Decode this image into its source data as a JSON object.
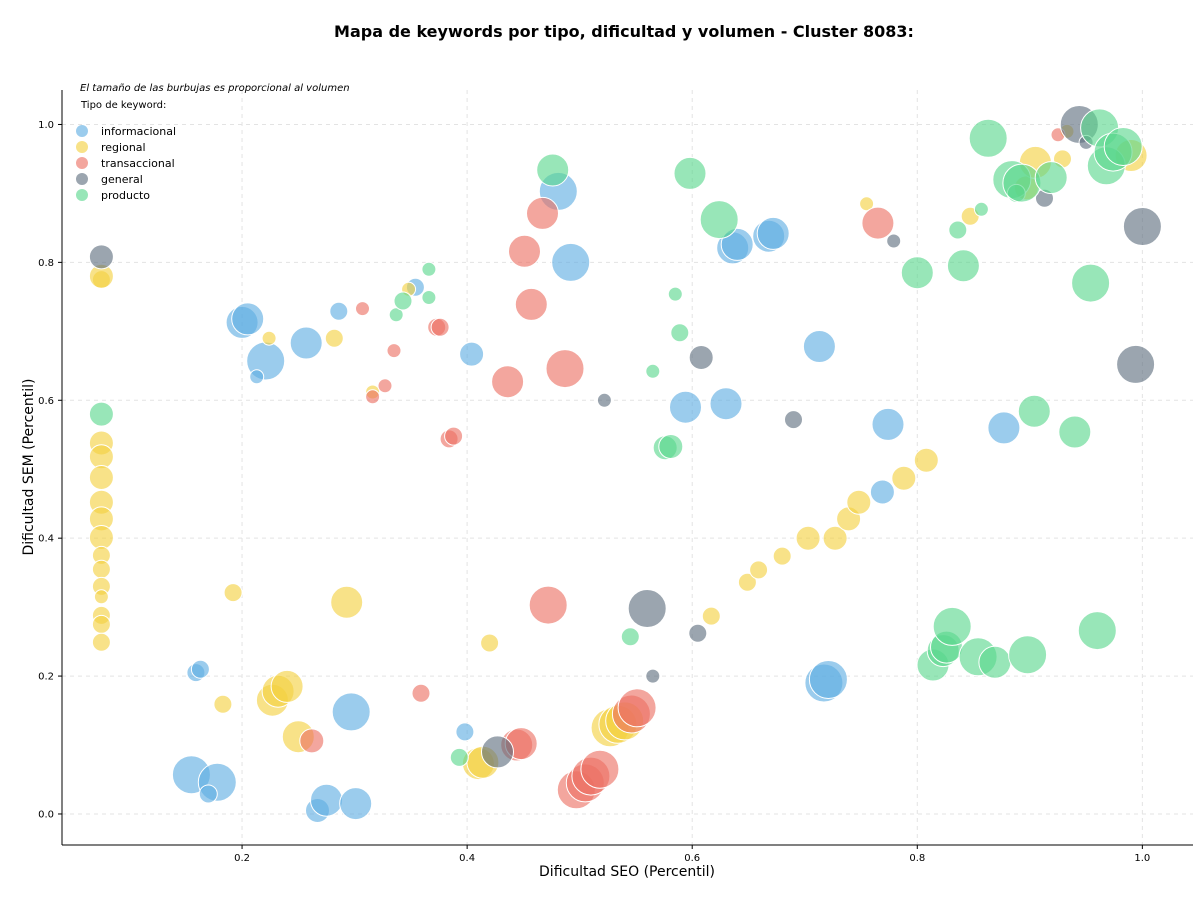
{
  "chart_data": {
    "type": "scatter",
    "title": "Mapa de keywords por tipo, dificultad y volumen - Cluster 8083:",
    "xlabel": "Dificultad SEO (Percentil)",
    "ylabel": "Dificultad SEM (Percentil)",
    "xlim": [
      0.04,
      1.045
    ],
    "ylim": [
      -0.045,
      1.05
    ],
    "xticks": [
      "0.2",
      "0.4",
      "0.6",
      "0.8",
      "1.0"
    ],
    "yticks": [
      "0.0",
      "0.2",
      "0.4",
      "0.6",
      "0.8",
      "1.0"
    ],
    "grid": true,
    "note": "El tamaño de las burbujas es proporcional al volumen",
    "legend_title": "Tipo de keyword:",
    "legend_position": "top-left",
    "size_encoding": "relative_volume",
    "series": [
      {
        "name": "informacional",
        "color": "#5dade2",
        "points": [
          [
            0.155,
            0.057,
            5
          ],
          [
            0.178,
            0.046,
            5
          ],
          [
            0.17,
            0.029,
            2
          ],
          [
            0.159,
            0.205,
            2
          ],
          [
            0.163,
            0.21,
            2
          ],
          [
            0.267,
            0.005,
            3
          ],
          [
            0.275,
            0.02,
            4
          ],
          [
            0.301,
            0.015,
            4
          ],
          [
            0.297,
            0.148,
            5
          ],
          [
            0.398,
            0.119,
            2
          ],
          [
            0.2,
            0.713,
            4
          ],
          [
            0.205,
            0.718,
            4
          ],
          [
            0.221,
            0.657,
            5
          ],
          [
            0.257,
            0.683,
            4
          ],
          [
            0.213,
            0.634,
            1
          ],
          [
            0.286,
            0.729,
            2
          ],
          [
            0.354,
            0.764,
            2
          ],
          [
            0.404,
            0.667,
            3
          ],
          [
            0.481,
            0.903,
            5
          ],
          [
            0.492,
            0.8,
            5
          ],
          [
            0.594,
            0.59,
            4
          ],
          [
            0.63,
            0.595,
            4
          ],
          [
            0.636,
            0.821,
            4
          ],
          [
            0.64,
            0.826,
            4
          ],
          [
            0.668,
            0.838,
            4
          ],
          [
            0.672,
            0.842,
            4
          ],
          [
            0.713,
            0.678,
            4
          ],
          [
            0.717,
            0.19,
            5
          ],
          [
            0.721,
            0.195,
            5
          ],
          [
            0.769,
            0.467,
            3
          ],
          [
            0.774,
            0.565,
            4
          ],
          [
            0.877,
            0.56,
            4
          ]
        ]
      },
      {
        "name": "regional",
        "color": "#f4d03f",
        "points": [
          [
            0.075,
            0.775,
            2
          ],
          [
            0.075,
            0.78,
            3
          ],
          [
            0.075,
            0.538,
            3
          ],
          [
            0.075,
            0.518,
            3
          ],
          [
            0.075,
            0.488,
            3
          ],
          [
            0.075,
            0.452,
            3
          ],
          [
            0.075,
            0.428,
            3
          ],
          [
            0.075,
            0.401,
            3
          ],
          [
            0.075,
            0.375,
            2
          ],
          [
            0.075,
            0.355,
            2
          ],
          [
            0.075,
            0.33,
            2
          ],
          [
            0.075,
            0.315,
            1
          ],
          [
            0.075,
            0.288,
            2
          ],
          [
            0.075,
            0.275,
            2
          ],
          [
            0.075,
            0.249,
            2
          ],
          [
            0.183,
            0.159,
            2
          ],
          [
            0.192,
            0.321,
            2
          ],
          [
            0.227,
            0.165,
            4
          ],
          [
            0.232,
            0.178,
            4
          ],
          [
            0.24,
            0.185,
            4
          ],
          [
            0.25,
            0.112,
            4
          ],
          [
            0.224,
            0.69,
            1
          ],
          [
            0.282,
            0.69,
            2
          ],
          [
            0.293,
            0.307,
            4
          ],
          [
            0.316,
            0.612,
            1
          ],
          [
            0.348,
            0.761,
            1
          ],
          [
            0.41,
            0.073,
            4
          ],
          [
            0.414,
            0.075,
            4
          ],
          [
            0.42,
            0.248,
            2
          ],
          [
            0.527,
            0.125,
            5
          ],
          [
            0.534,
            0.13,
            5
          ],
          [
            0.54,
            0.135,
            5
          ],
          [
            0.617,
            0.287,
            2
          ],
          [
            0.649,
            0.336,
            2
          ],
          [
            0.659,
            0.354,
            2
          ],
          [
            0.68,
            0.374,
            2
          ],
          [
            0.703,
            0.4,
            3
          ],
          [
            0.727,
            0.4,
            3
          ],
          [
            0.739,
            0.428,
            3
          ],
          [
            0.748,
            0.452,
            3
          ],
          [
            0.788,
            0.487,
            3
          ],
          [
            0.808,
            0.513,
            3
          ],
          [
            0.755,
            0.885,
            1
          ],
          [
            0.847,
            0.867,
            2
          ],
          [
            0.897,
            0.908,
            3
          ],
          [
            0.905,
            0.945,
            4
          ],
          [
            0.929,
            0.95,
            2
          ],
          [
            0.933,
            0.99,
            1
          ],
          [
            0.99,
            0.955,
            4
          ]
        ]
      },
      {
        "name": "transaccional",
        "color": "#ec7063",
        "points": [
          [
            0.307,
            0.733,
            1
          ],
          [
            0.316,
            0.605,
            1
          ],
          [
            0.327,
            0.621,
            1
          ],
          [
            0.335,
            0.672,
            1
          ],
          [
            0.359,
            0.175,
            2
          ],
          [
            0.373,
            0.706,
            2
          ],
          [
            0.376,
            0.706,
            2
          ],
          [
            0.384,
            0.544,
            2
          ],
          [
            0.388,
            0.548,
            2
          ],
          [
            0.262,
            0.106,
            3
          ],
          [
            0.436,
            0.627,
            4
          ],
          [
            0.444,
            0.1,
            4
          ],
          [
            0.448,
            0.102,
            4
          ],
          [
            0.451,
            0.816,
            4
          ],
          [
            0.457,
            0.739,
            4
          ],
          [
            0.467,
            0.871,
            4
          ],
          [
            0.472,
            0.303,
            5
          ],
          [
            0.487,
            0.646,
            5
          ],
          [
            0.497,
            0.035,
            5
          ],
          [
            0.505,
            0.045,
            5
          ],
          [
            0.51,
            0.055,
            5
          ],
          [
            0.518,
            0.065,
            5
          ],
          [
            0.546,
            0.145,
            5
          ],
          [
            0.551,
            0.154,
            5
          ],
          [
            0.765,
            0.857,
            4
          ],
          [
            0.925,
            0.985,
            1
          ]
        ]
      },
      {
        "name": "general",
        "color": "#5d6d7e",
        "points": [
          [
            0.075,
            0.808,
            3
          ],
          [
            0.427,
            0.09,
            4
          ],
          [
            0.522,
            0.6,
            1
          ],
          [
            0.56,
            0.298,
            5
          ],
          [
            0.565,
            0.2,
            1
          ],
          [
            0.605,
            0.262,
            2
          ],
          [
            0.608,
            0.662,
            3
          ],
          [
            0.69,
            0.572,
            2
          ],
          [
            0.779,
            0.831,
            1
          ],
          [
            0.913,
            0.893,
            2
          ],
          [
            0.944,
            1.0,
            5
          ],
          [
            0.95,
            0.974,
            1
          ],
          [
            0.994,
            0.652,
            5
          ],
          [
            1.0,
            0.852,
            5
          ]
        ]
      },
      {
        "name": "producto",
        "color": "#58d68d",
        "points": [
          [
            0.075,
            0.58,
            3
          ],
          [
            0.337,
            0.724,
            1
          ],
          [
            0.343,
            0.744,
            2
          ],
          [
            0.366,
            0.749,
            1
          ],
          [
            0.366,
            0.79,
            1
          ],
          [
            0.393,
            0.082,
            2
          ],
          [
            0.476,
            0.934,
            4
          ],
          [
            0.545,
            0.257,
            2
          ],
          [
            0.565,
            0.642,
            1
          ],
          [
            0.576,
            0.531,
            3
          ],
          [
            0.581,
            0.533,
            3
          ],
          [
            0.585,
            0.754,
            1
          ],
          [
            0.589,
            0.698,
            2
          ],
          [
            0.598,
            0.929,
            4
          ],
          [
            0.624,
            0.862,
            5
          ],
          [
            0.8,
            0.785,
            4
          ],
          [
            0.814,
            0.216,
            4
          ],
          [
            0.823,
            0.237,
            4
          ],
          [
            0.826,
            0.242,
            4
          ],
          [
            0.831,
            0.272,
            5
          ],
          [
            0.836,
            0.847,
            2
          ],
          [
            0.841,
            0.795,
            4
          ],
          [
            0.854,
            0.228,
            5
          ],
          [
            0.857,
            0.877,
            1
          ],
          [
            0.863,
            0.98,
            5
          ],
          [
            0.869,
            0.22,
            4
          ],
          [
            0.884,
            0.92,
            5
          ],
          [
            0.888,
            0.9,
            2
          ],
          [
            0.893,
            0.915,
            5
          ],
          [
            0.898,
            0.231,
            5
          ],
          [
            0.904,
            0.584,
            4
          ],
          [
            0.919,
            0.923,
            4
          ],
          [
            0.94,
            0.554,
            4
          ],
          [
            0.954,
            0.77,
            5
          ],
          [
            0.962,
            0.995,
            5
          ],
          [
            0.968,
            0.94,
            5
          ],
          [
            0.96,
            0.266,
            5
          ],
          [
            0.974,
            0.96,
            5
          ],
          [
            0.983,
            0.968,
            5
          ]
        ]
      }
    ]
  }
}
